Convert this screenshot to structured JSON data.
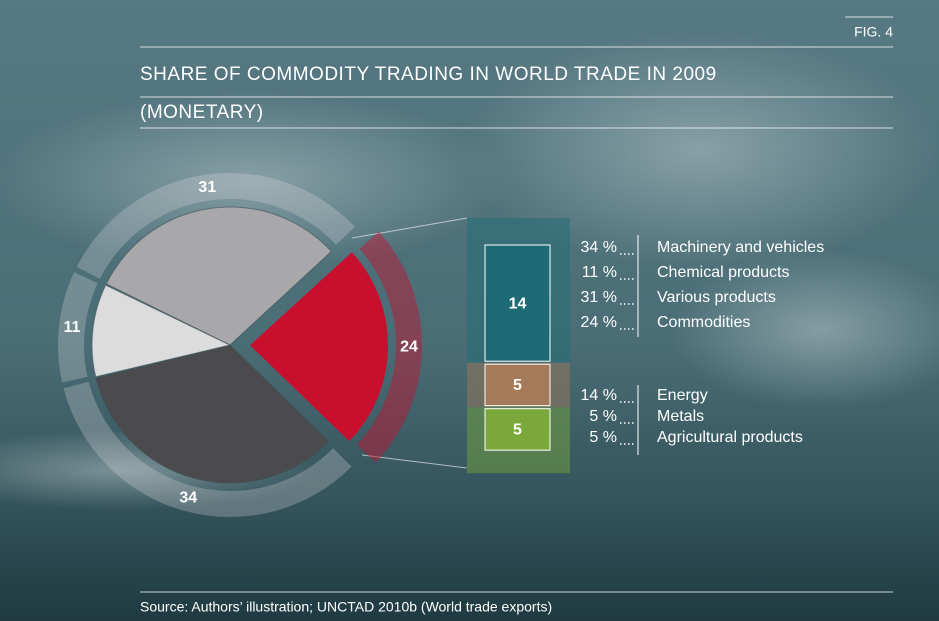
{
  "chart_data": [
    {
      "type": "pie",
      "figure_label": "FIG. 4",
      "title": "SHARE OF COMMODITY TRADING IN WORLD TRADE IN 2009",
      "subtitle": "(MONETARY)",
      "source": "Source: Authors’ illustration; UNCTAD 2010b (World trade exports)",
      "categories": [
        "Machinery and vehicles",
        "Chemical products",
        "Various products",
        "Commodities"
      ],
      "values": [
        34,
        11,
        31,
        24
      ],
      "value_labels": [
        "34 %",
        "11 %",
        "31 %",
        "24 %"
      ],
      "colors": [
        "#4b4b4d",
        "#dcdcdc",
        "#a8a8aa",
        "#c8102e"
      ]
    },
    {
      "type": "bar",
      "categories": [
        "Energy",
        "Metals",
        "Agricultural products"
      ],
      "values": [
        14,
        5,
        5
      ],
      "value_labels": [
        "14 %",
        "5 %",
        "5 %"
      ],
      "colors": [
        "#1d6c75",
        "#a47a58",
        "#7ba83a"
      ]
    }
  ]
}
